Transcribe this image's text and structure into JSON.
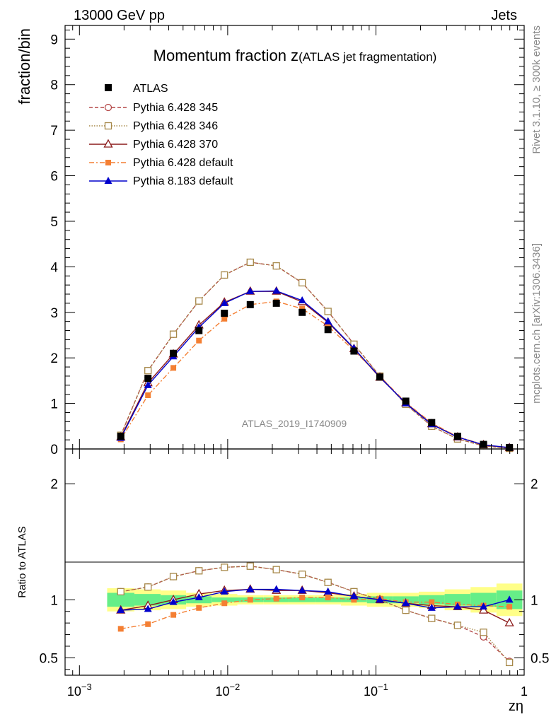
{
  "header": {
    "left": "13000 GeV pp",
    "right": "Jets"
  },
  "side_labels": {
    "rivet": "Rivet 3.1.10, ≥ 300k events",
    "mcplots": "mcplots.cern.ch [arXiv:1306.3436]"
  },
  "chart_data": {
    "type": "scatter",
    "title": "Momentum fraction z",
    "title_suffix": "(ATLAS jet fragmentation)",
    "watermark": "ATLAS_2019_I1740909",
    "xlabel": "zη",
    "ylabel": "fraction/bin",
    "ratio_ylabel": "Ratio to ATLAS",
    "xscale": "log",
    "xlim": [
      0.0008,
      1.0
    ],
    "ylim": [
      0,
      9.3
    ],
    "ratio_ylim": [
      0.35,
      2.3
    ],
    "main_yticks": [
      "0",
      "1",
      "2",
      "3",
      "4",
      "5",
      "6",
      "7",
      "8",
      "9"
    ],
    "ratio_yticks": [
      "0.5",
      "1",
      "2"
    ],
    "xtick_labels": [
      {
        "base": "10",
        "exp": "−3"
      },
      {
        "base": "10",
        "exp": "−2"
      },
      {
        "base": "10",
        "exp": "−1"
      },
      {
        "base": "1",
        "exp": ""
      }
    ],
    "x": [
      0.0019,
      0.0029,
      0.0043,
      0.0064,
      0.0095,
      0.0142,
      0.0213,
      0.0318,
      0.0475,
      0.0711,
      0.1063,
      0.159,
      0.2378,
      0.3556,
      0.5318,
      0.795
    ],
    "data": {
      "name": "ATLAS",
      "values": [
        0.28,
        1.55,
        2.1,
        2.6,
        2.98,
        3.17,
        3.2,
        3.0,
        2.62,
        2.15,
        1.58,
        1.05,
        0.58,
        0.28,
        0.1,
        0.03
      ],
      "ratio_band_inner": [
        0.06,
        0.05,
        0.04,
        0.03,
        0.02,
        0.02,
        0.02,
        0.02,
        0.02,
        0.02,
        0.03,
        0.03,
        0.04,
        0.05,
        0.06,
        0.08
      ],
      "ratio_band_outer": [
        0.1,
        0.09,
        0.08,
        0.06,
        0.05,
        0.04,
        0.04,
        0.04,
        0.04,
        0.05,
        0.06,
        0.06,
        0.07,
        0.09,
        0.11,
        0.14
      ]
    },
    "series": [
      {
        "name": "Pythia 6.428 345",
        "color": "#b44747",
        "marker": "circle-open",
        "dash": "5,3",
        "values": [
          0.3,
          1.72,
          2.52,
          3.25,
          3.82,
          4.1,
          4.02,
          3.65,
          3.02,
          2.3,
          1.6,
          0.98,
          0.5,
          0.22,
          0.07,
          0.014
        ],
        "ratio": [
          1.07,
          1.11,
          1.2,
          1.25,
          1.28,
          1.29,
          1.26,
          1.22,
          1.15,
          1.07,
          1.0,
          0.91,
          0.84,
          0.78,
          0.68,
          0.47
        ]
      },
      {
        "name": "Pythia 6.428 346",
        "color": "#a68849",
        "marker": "square-open",
        "dash": "1.5,2",
        "values": [
          0.3,
          1.72,
          2.52,
          3.25,
          3.82,
          4.1,
          4.02,
          3.65,
          3.02,
          2.3,
          1.6,
          0.98,
          0.5,
          0.22,
          0.073,
          0.014
        ],
        "ratio": [
          1.07,
          1.11,
          1.2,
          1.25,
          1.28,
          1.29,
          1.26,
          1.22,
          1.15,
          1.07,
          1.0,
          0.91,
          0.84,
          0.78,
          0.72,
          0.46
        ]
      },
      {
        "name": "Pythia 6.428 370",
        "color": "#8b1a1a",
        "marker": "triangle-open",
        "dash": "",
        "values": [
          0.26,
          1.45,
          2.08,
          2.72,
          3.22,
          3.46,
          3.46,
          3.23,
          2.78,
          2.2,
          1.57,
          1.01,
          0.55,
          0.26,
          0.09,
          0.024
        ],
        "ratio": [
          0.91,
          0.95,
          1.0,
          1.05,
          1.08,
          1.09,
          1.08,
          1.08,
          1.06,
          1.03,
          1.0,
          0.97,
          0.95,
          0.94,
          0.91,
          0.8
        ]
      },
      {
        "name": "Pythia 6.428 default",
        "color": "#f47f33",
        "marker": "square-filled",
        "dash": "7,3,2,3",
        "values": [
          0.21,
          1.18,
          1.78,
          2.38,
          2.86,
          3.17,
          3.24,
          3.08,
          2.7,
          2.16,
          1.6,
          1.02,
          0.57,
          0.27,
          0.095,
          0.028
        ],
        "ratio": [
          0.75,
          0.79,
          0.87,
          0.93,
          0.97,
          1.0,
          1.01,
          1.02,
          1.02,
          1.0,
          1.01,
          0.98,
          0.98,
          0.96,
          0.95,
          0.94
        ]
      },
      {
        "name": "Pythia 8.183 default",
        "color": "#0000cc",
        "marker": "triangle-filled",
        "dash": "",
        "values": [
          0.24,
          1.4,
          2.03,
          2.67,
          3.2,
          3.46,
          3.47,
          3.26,
          2.8,
          2.21,
          1.58,
          1.0,
          0.54,
          0.26,
          0.09,
          0.03
        ],
        "ratio": [
          0.91,
          0.92,
          0.98,
          1.02,
          1.07,
          1.09,
          1.09,
          1.08,
          1.07,
          1.03,
          1.0,
          0.97,
          0.93,
          0.94,
          0.94,
          1.0
        ]
      }
    ]
  }
}
